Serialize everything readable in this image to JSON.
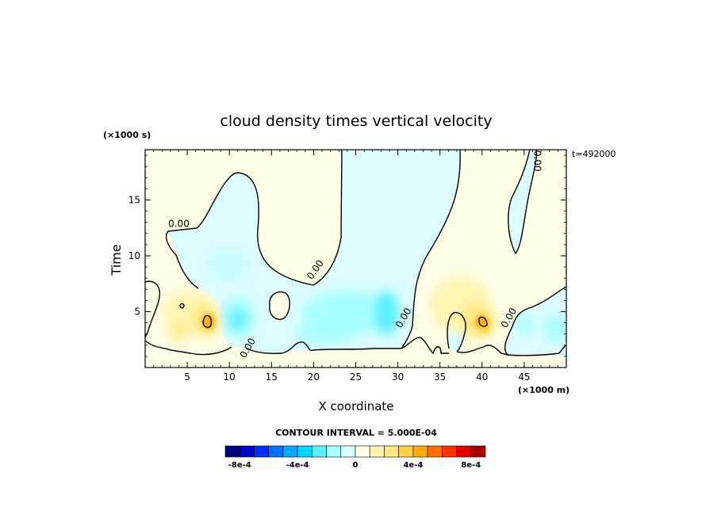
{
  "chart_data": {
    "type": "heatmap",
    "title": "cloud density times vertical velocity",
    "xlabel": "X coordinate",
    "ylabel": "Time",
    "x_unit": "(×1000 m)",
    "y_unit": "(×1000 s)",
    "timestamp": "t=492000",
    "xlim": [
      0,
      50
    ],
    "ylim": [
      0,
      19.5
    ],
    "x_ticks": [
      5,
      10,
      15,
      20,
      25,
      30,
      35,
      40,
      45
    ],
    "y_ticks": [
      5,
      10,
      15
    ],
    "contour_interval_text": "CONTOUR INTERVAL = 5.000E-04",
    "contour_labels": [
      {
        "text": "0.00",
        "x": 4,
        "y": 12.6
      },
      {
        "text": "0.00",
        "x": 20.5,
        "y": 8.6
      },
      {
        "text": "0.00",
        "x": 12.5,
        "y": 1.6
      },
      {
        "text": "0.00",
        "x": 31.0,
        "y": 4.3
      },
      {
        "text": "0.00",
        "x": 43.5,
        "y": 4.3
      },
      {
        "text": "0.00",
        "x": 46.2,
        "y": 18.5
      }
    ],
    "features": [
      {
        "sign": "positive",
        "x": 7.5,
        "y": 4.2,
        "peak": 0.0006
      },
      {
        "sign": "positive",
        "x": 4.0,
        "y": 3.5,
        "peak": 0.0002
      },
      {
        "sign": "positive",
        "x": 39.5,
        "y": 4.0,
        "peak": 0.0007
      },
      {
        "sign": "negative",
        "x": 10.5,
        "y": 4.5,
        "peak": -0.0003
      },
      {
        "sign": "negative",
        "x": 13.5,
        "y": 9.0,
        "peak": -0.0002
      },
      {
        "sign": "negative",
        "x": 29.0,
        "y": 5.0,
        "peak": -0.0003
      },
      {
        "sign": "negative",
        "x": 48.0,
        "y": 3.5,
        "peak": -0.0002
      },
      {
        "sign": "negative",
        "x": 42.5,
        "y": 3.8,
        "peak": -0.0002
      }
    ],
    "colorbar": {
      "colors": [
        "#00007f",
        "#0000c8",
        "#0030ff",
        "#0070ff",
        "#00a8ff",
        "#00d4ff",
        "#5cf0ff",
        "#a8ffff",
        "#ddfcff",
        "#fffde6",
        "#fff4b0",
        "#ffe880",
        "#ffd040",
        "#ffaa00",
        "#ff7000",
        "#ff3000",
        "#e00000",
        "#a80000"
      ],
      "tick_labels": [
        "-8e-4",
        "-4e-4",
        "0",
        "4e-4",
        "8e-4"
      ],
      "tick_values": [
        -0.0008,
        -0.0004,
        0,
        0.0004,
        0.0008
      ],
      "min": -0.0009,
      "max": 0.0009
    }
  }
}
